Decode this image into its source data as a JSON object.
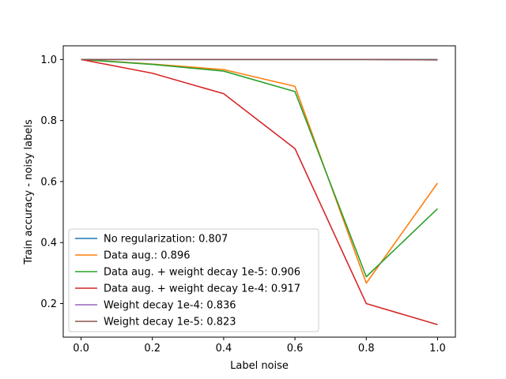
{
  "chart_data": {
    "type": "line",
    "xlabel": "Label noise",
    "ylabel": "Train accuracy - noisy labels",
    "xlim": [
      -0.05,
      1.05
    ],
    "ylim": [
      0.09,
      1.045
    ],
    "x_ticks": [
      "0.0",
      "0.2",
      "0.4",
      "0.6",
      "0.8",
      "1.0"
    ],
    "y_ticks": [
      "0.2",
      "0.4",
      "0.6",
      "0.8",
      "1.0"
    ],
    "grid": false,
    "legend_position": "lower-left",
    "x": [
      0.0,
      0.2,
      0.4,
      0.6,
      0.8,
      1.0
    ],
    "series": [
      {
        "name": "No regularization: 0.807",
        "color": "#1f77b4",
        "values": [
          1.0,
          1.0,
          1.0,
          1.0,
          1.0,
          1.0
        ]
      },
      {
        "name": "Data aug.: 0.896",
        "color": "#ff7f0e",
        "values": [
          1.0,
          0.985,
          0.967,
          0.912,
          0.267,
          0.595
        ]
      },
      {
        "name": "Data aug. + weight decay 1e-5: 0.906",
        "color": "#2ca02c",
        "values": [
          1.0,
          0.984,
          0.962,
          0.895,
          0.288,
          0.511
        ]
      },
      {
        "name": "Data aug. + weight decay 1e-4: 0.917",
        "color": "#d62728",
        "values": [
          1.0,
          0.955,
          0.888,
          0.708,
          0.2,
          0.131
        ]
      },
      {
        "name": "Weight decay 1e-4: 0.836",
        "color": "#9467bd",
        "values": [
          1.0,
          1.0,
          1.0,
          1.0,
          1.0,
          0.999
        ]
      },
      {
        "name": "Weight decay 1e-5: 0.823",
        "color": "#8c564b",
        "values": [
          1.0,
          1.0,
          1.0,
          1.0,
          1.0,
          0.999
        ]
      }
    ]
  }
}
